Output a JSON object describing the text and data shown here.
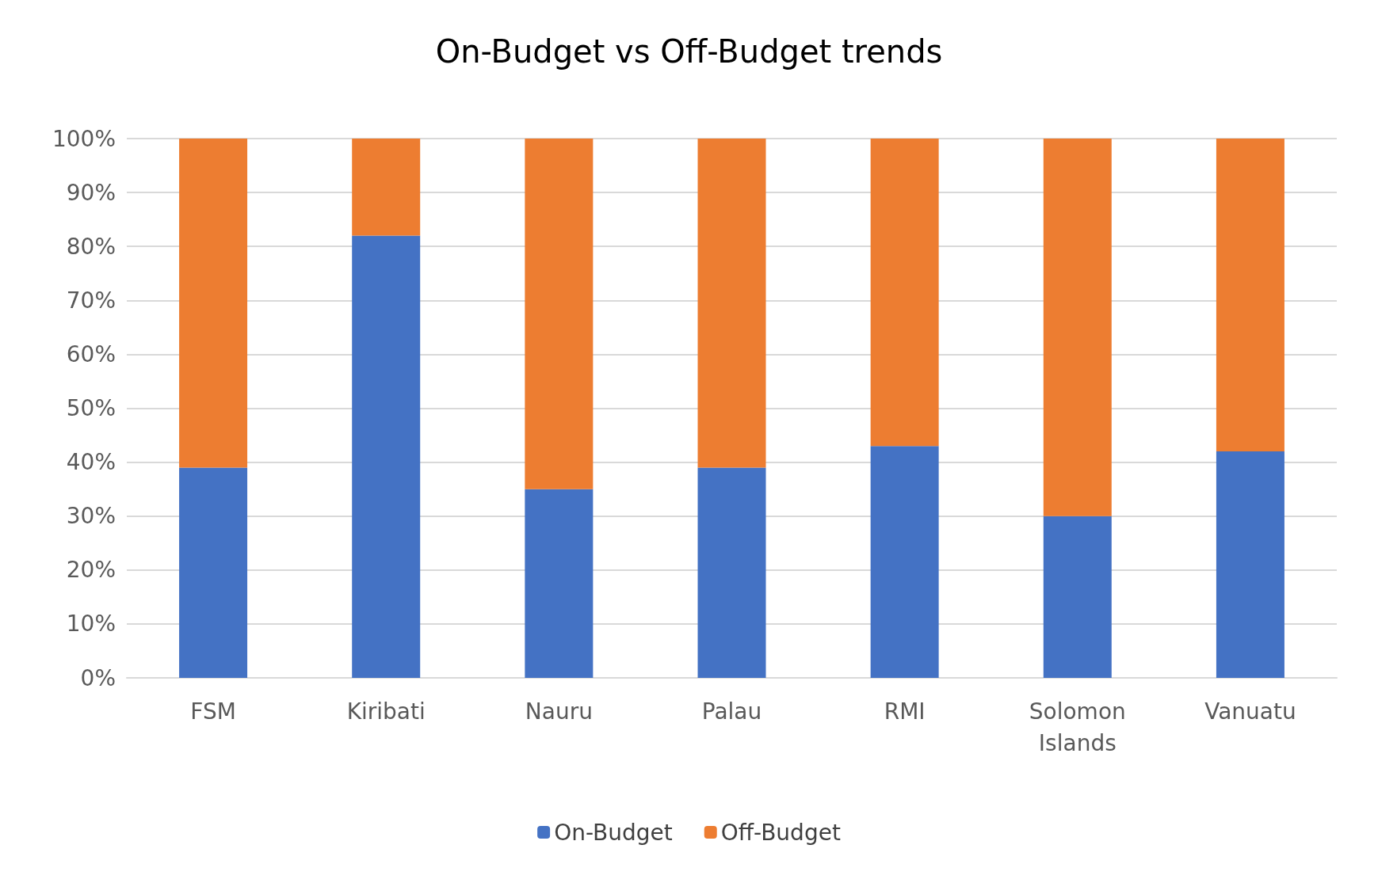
{
  "chart_data": {
    "type": "bar",
    "title": "On-Budget vs Off-Budget trends",
    "stacked": true,
    "categories": [
      "FSM",
      "Kiribati",
      "Nauru",
      "Palau",
      "RMI",
      "Solomon\nIslands",
      "Vanuatu"
    ],
    "series": [
      {
        "name": "On-Budget",
        "color": "#4472c4",
        "values": [
          39,
          82,
          35,
          39,
          43,
          30,
          42
        ]
      },
      {
        "name": "Off-Budget",
        "color": "#ed7d31",
        "values": [
          61,
          18,
          65,
          61,
          57,
          70,
          58
        ]
      }
    ],
    "ylim": [
      0,
      100
    ],
    "yticks": [
      {
        "value": 0,
        "label": "0%"
      },
      {
        "value": 10,
        "label": "10%"
      },
      {
        "value": 20,
        "label": "20%"
      },
      {
        "value": 30,
        "label": "30%"
      },
      {
        "value": 40,
        "label": "40%"
      },
      {
        "value": 50,
        "label": "50%"
      },
      {
        "value": 60,
        "label": "60%"
      },
      {
        "value": 70,
        "label": "70%"
      },
      {
        "value": 80,
        "label": "80%"
      },
      {
        "value": 90,
        "label": "90%"
      },
      {
        "value": 100,
        "label": "100%"
      }
    ],
    "grid": "y",
    "legend": "bottom"
  }
}
